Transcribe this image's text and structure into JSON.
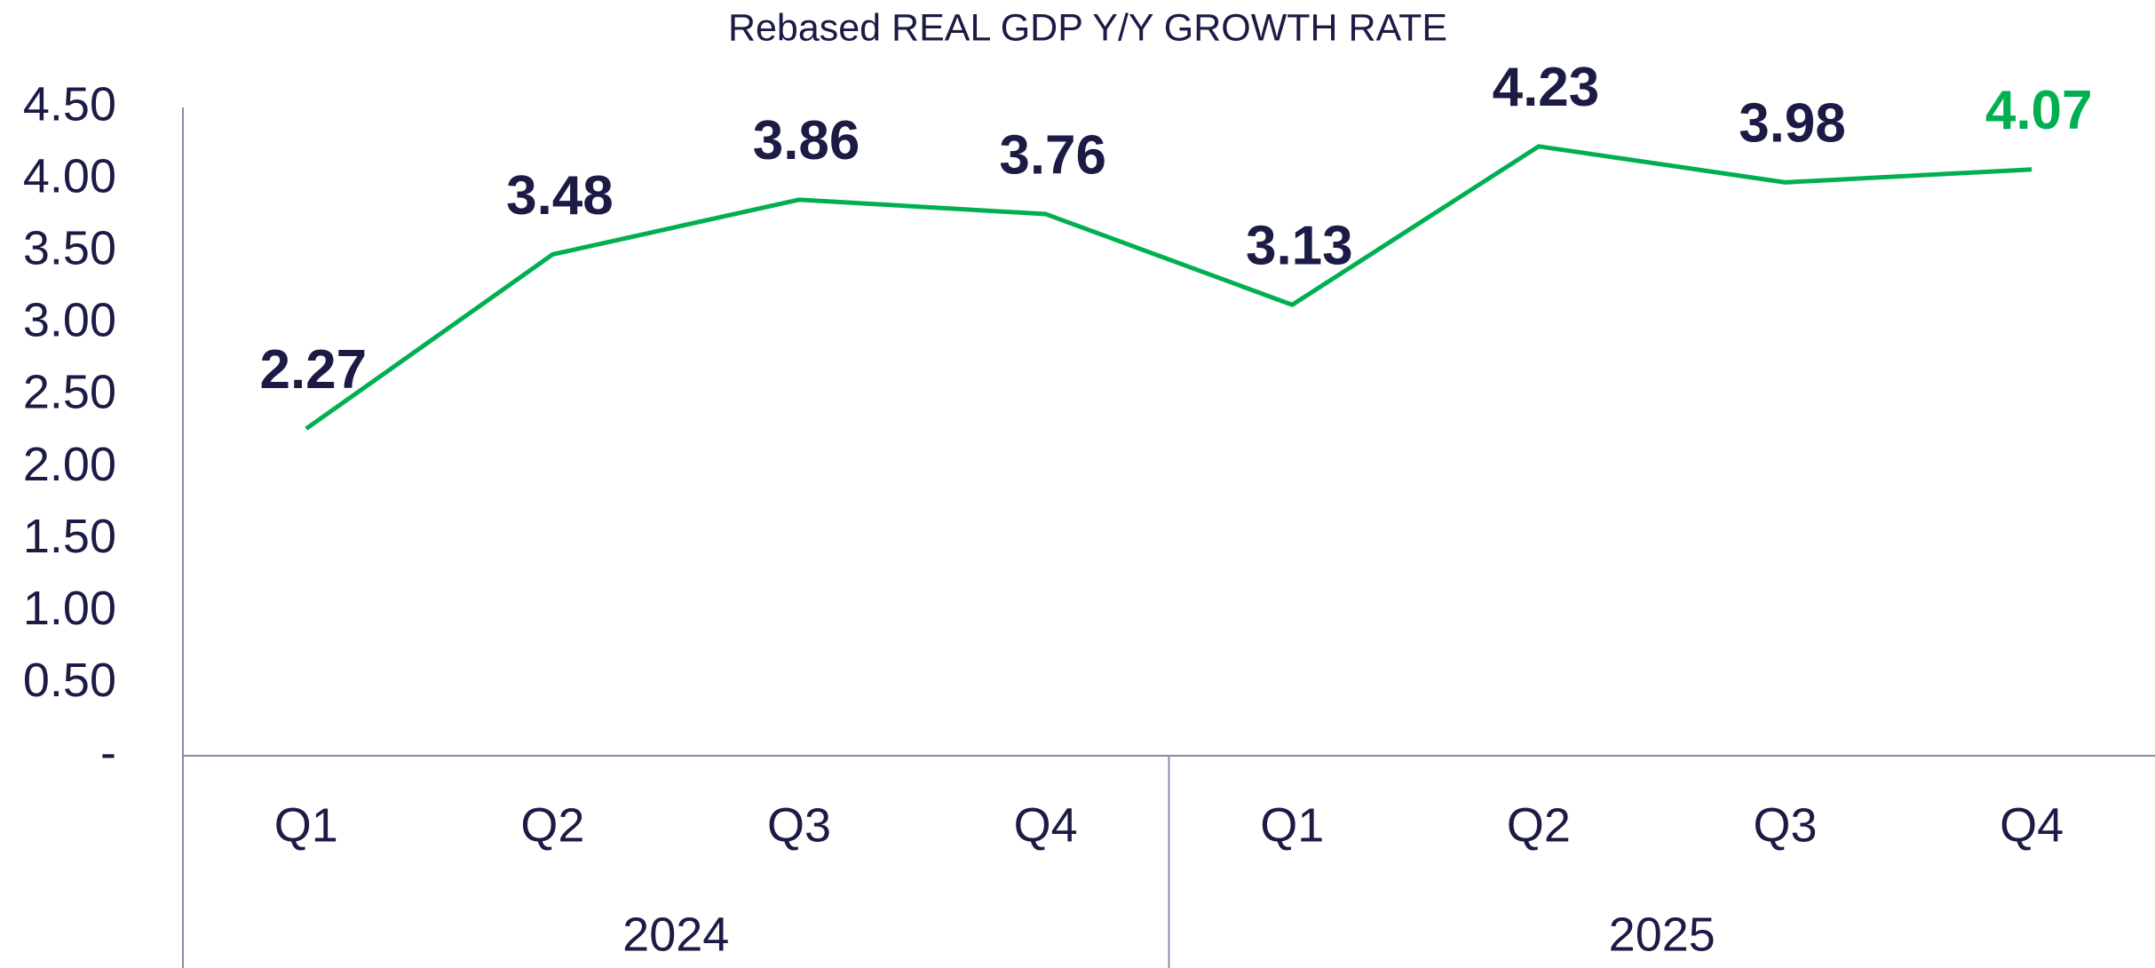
{
  "chart_data": {
    "type": "line",
    "title": "Rebased REAL GDP Y/Y GROWTH RATE",
    "groups": [
      {
        "name": "2024",
        "categories": [
          "Q1",
          "Q2",
          "Q3",
          "Q4"
        ]
      },
      {
        "name": "2025",
        "categories": [
          "Q1",
          "Q2",
          "Q3",
          "Q4"
        ]
      }
    ],
    "values": [
      2.27,
      3.48,
      3.86,
      3.76,
      3.13,
      4.23,
      3.98,
      4.07
    ],
    "color": "#00b050",
    "value_label_colors": [
      "#1b1b45",
      "#1b1b45",
      "#1b1b45",
      "#1b1b45",
      "#1b1b45",
      "#1b1b45",
      "#1b1b45",
      "#00b050"
    ],
    "ylim": [
      0,
      4.5
    ],
    "yticks": [
      {
        "value": 0,
        "label": "-"
      },
      {
        "value": 0.5,
        "label": "0.50"
      },
      {
        "value": 1,
        "label": "1.00"
      },
      {
        "value": 1.5,
        "label": "1.50"
      },
      {
        "value": 2,
        "label": "2.00"
      },
      {
        "value": 2.5,
        "label": "2.50"
      },
      {
        "value": 3,
        "label": "3.00"
      },
      {
        "value": 3.5,
        "label": "3.50"
      },
      {
        "value": 4,
        "label": "4.00"
      },
      {
        "value": 4.5,
        "label": "4.50"
      }
    ],
    "grid": false
  }
}
